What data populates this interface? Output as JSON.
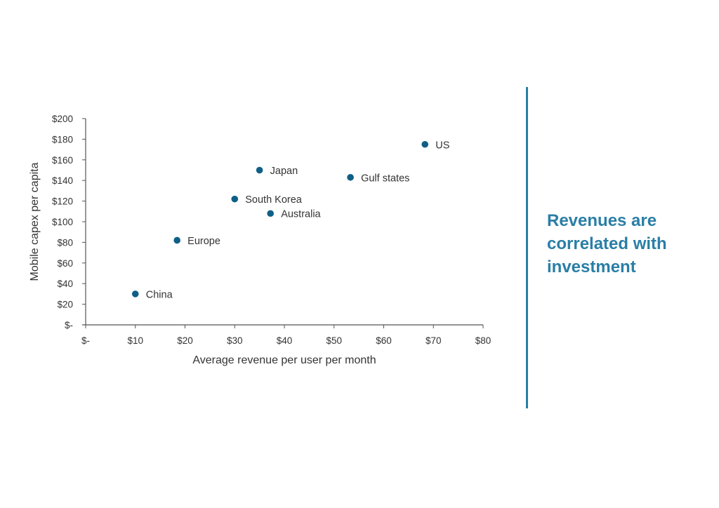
{
  "chart_data": {
    "type": "scatter",
    "title": "",
    "xlabel": "Average revenue per user per month",
    "ylabel": "Mobile capex per capita",
    "xlim": [
      0,
      80
    ],
    "ylim": [
      0,
      200
    ],
    "x_ticks": [
      "$-",
      "$10",
      "$20",
      "$30",
      "$40",
      "$50",
      "$60",
      "$70",
      "$80"
    ],
    "y_ticks": [
      "$-",
      "$20",
      "$40",
      "$60",
      "$80",
      "$100",
      "$120",
      "$140",
      "$160",
      "$180",
      "$200"
    ],
    "grid": false,
    "legend": "none",
    "marker_color": "#0f5f86",
    "points": [
      {
        "label": "China",
        "x": 10,
        "y": 30
      },
      {
        "label": "Europe",
        "x": 18.4,
        "y": 82
      },
      {
        "label": "South Korea",
        "x": 30,
        "y": 122
      },
      {
        "label": "Japan",
        "x": 35,
        "y": 150
      },
      {
        "label": "Australia",
        "x": 37.2,
        "y": 108
      },
      {
        "label": "Gulf states",
        "x": 53.3,
        "y": 143
      },
      {
        "label": "US",
        "x": 68.3,
        "y": 175
      }
    ]
  },
  "callout": {
    "text": "Revenues are correlated with investment",
    "color": "#2a7ea6"
  }
}
